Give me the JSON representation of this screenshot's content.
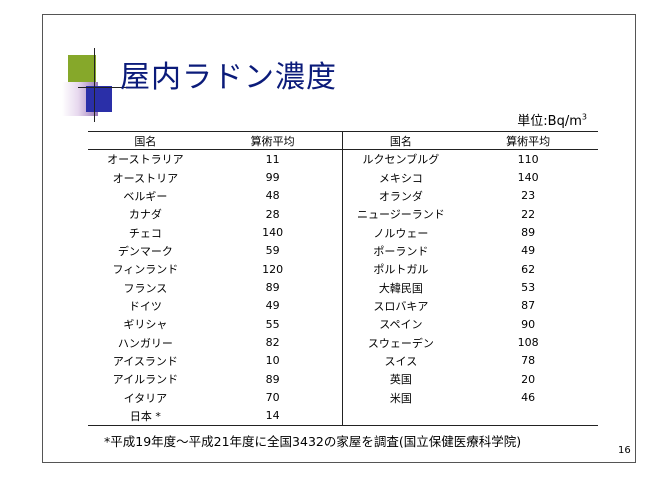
{
  "title": "屋内ラドン濃度",
  "unit": {
    "prefix": "単位:Bq/m",
    "exp": "3"
  },
  "headers": {
    "left_country": "国名",
    "left_value": "算術平均",
    "right_country": "国名",
    "right_value": "算術平均"
  },
  "left_rows": [
    {
      "country": "オーストラリア",
      "value": "11"
    },
    {
      "country": "オーストリア",
      "value": "99"
    },
    {
      "country": "ベルギー",
      "value": "48"
    },
    {
      "country": "カナダ",
      "value": "28"
    },
    {
      "country": "チェコ",
      "value": "140"
    },
    {
      "country": "デンマーク",
      "value": "59"
    },
    {
      "country": "フィンランド",
      "value": "120"
    },
    {
      "country": "フランス",
      "value": "89"
    },
    {
      "country": "ドイツ",
      "value": "49"
    },
    {
      "country": "ギリシャ",
      "value": "55"
    },
    {
      "country": "ハンガリー",
      "value": "82"
    },
    {
      "country": "アイスランド",
      "value": "10"
    },
    {
      "country": "アイルランド",
      "value": "89"
    },
    {
      "country": "イタリア",
      "value": "70"
    },
    {
      "country": "日本 *",
      "value": "14"
    }
  ],
  "right_rows": [
    {
      "country": "ルクセンブルグ",
      "value": "110"
    },
    {
      "country": "メキシコ",
      "value": "140"
    },
    {
      "country": "オランダ",
      "value": "23"
    },
    {
      "country": "ニュージーランド",
      "value": "22"
    },
    {
      "country": "ノルウェー",
      "value": "89"
    },
    {
      "country": "ポーランド",
      "value": "49"
    },
    {
      "country": "ポルトガル",
      "value": "62"
    },
    {
      "country": "大韓民国",
      "value": "53"
    },
    {
      "country": "スロバキア",
      "value": "87"
    },
    {
      "country": "スペイン",
      "value": "90"
    },
    {
      "country": "スウェーデン",
      "value": "108"
    },
    {
      "country": "スイス",
      "value": "78"
    },
    {
      "country": "英国",
      "value": "20"
    },
    {
      "country": "米国",
      "value": "46"
    },
    {
      "country": "",
      "value": ""
    }
  ],
  "footnote": "*平成19年度～平成21年度に全国3432の家屋を調査(国立保健医療科学院)",
  "page_number": "16"
}
